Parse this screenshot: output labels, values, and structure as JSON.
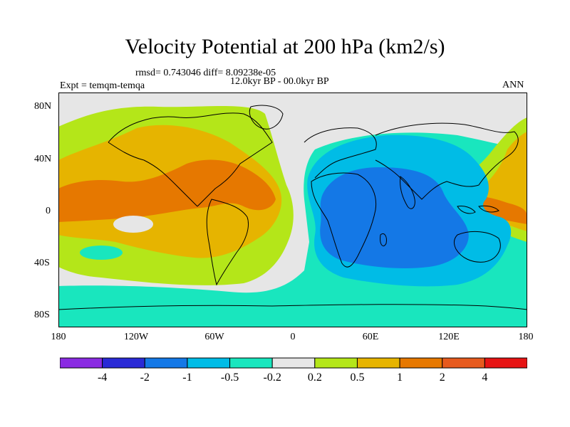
{
  "title": "Velocity Potential at 200 hPa (km2/s)",
  "rmsd_text": "rmsd= 0.743046  diff= 8.09238e-05",
  "experiment": "Expt = temqm-temqa",
  "period": "12.0kyr BP - 00.0kyr BP",
  "season": "ANN",
  "lat_ticks": [
    "80N",
    "40N",
    "0",
    "40S",
    "80S"
  ],
  "lon_ticks": [
    "180",
    "120W",
    "60W",
    "0",
    "60E",
    "120E",
    "180"
  ],
  "colorbar": {
    "labels": [
      "-4",
      "-2",
      "-1",
      "-0.5",
      "-0.2",
      "0.2",
      "0.5",
      "1",
      "2",
      "4"
    ],
    "colors": [
      "#8a2be2",
      "#2a2ad6",
      "#1478e6",
      "#00bce6",
      "#19e6be",
      "#e6e6e6",
      "#b4e619",
      "#e6b400",
      "#e67800",
      "#e65a1e",
      "#e61414"
    ]
  }
}
